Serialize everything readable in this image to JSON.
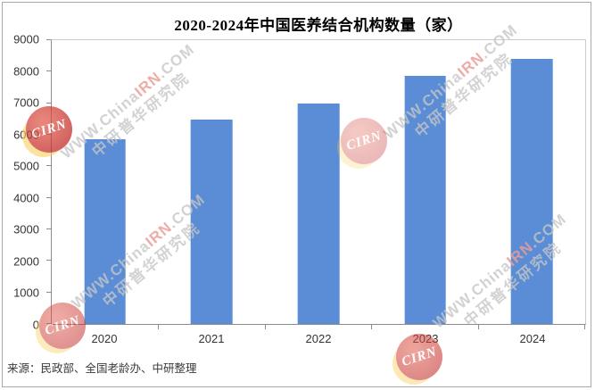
{
  "chart_data": {
    "type": "bar",
    "title": "2020-2024年中国医养结合机构数量（家）",
    "categories": [
      "2020",
      "2021",
      "2022",
      "2023",
      "2024"
    ],
    "values": [
      5857,
      6492,
      6986,
      7881,
      8400
    ],
    "ylim": [
      0,
      9000
    ],
    "yticks": [
      0,
      1000,
      2000,
      3000,
      4000,
      5000,
      6000,
      7000,
      8000,
      9000
    ],
    "xlabel": "",
    "ylabel": "",
    "grid": false,
    "legend": false,
    "bar_color": "#5a8dd5"
  },
  "source_note": "来源：民政部、全国老龄办、中研整理",
  "watermark": {
    "site_prefix": "WWW.China",
    "site_mid": "IRN",
    "site_suffix": ".COM",
    "org": "中研普华研究院",
    "logo_text": "CIRN"
  }
}
